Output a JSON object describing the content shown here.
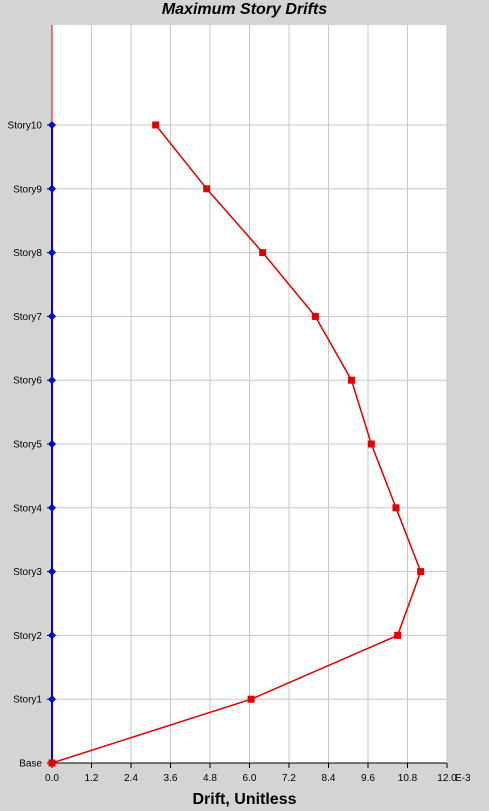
{
  "chart_data": {
    "type": "line",
    "title": "Maximum Story Drifts",
    "xlabel": "Drift, Unitless",
    "ylabel": "",
    "x_scale_label": "E-3",
    "xlim": [
      0,
      12
    ],
    "x_ticks": [
      "0.0",
      "1.2",
      "2.4",
      "3.6",
      "4.8",
      "6.0",
      "7.2",
      "8.4",
      "9.6",
      "10.8",
      "12.0"
    ],
    "categories": [
      "Base",
      "Story1",
      "Story2",
      "Story3",
      "Story4",
      "Story5",
      "Story6",
      "Story7",
      "Story8",
      "Story9",
      "Story10"
    ],
    "grid": true,
    "series": [
      {
        "color": "#e00000",
        "marker": "square",
        "values": [
          0.0,
          6.05,
          10.5,
          11.2,
          10.45,
          9.7,
          9.1,
          8.0,
          6.4,
          4.7,
          3.15
        ]
      },
      {
        "color": "#0000e0",
        "marker": "diamond",
        "values": [
          0,
          0,
          0,
          0,
          0,
          0,
          0,
          0,
          0,
          0,
          0
        ]
      }
    ]
  }
}
